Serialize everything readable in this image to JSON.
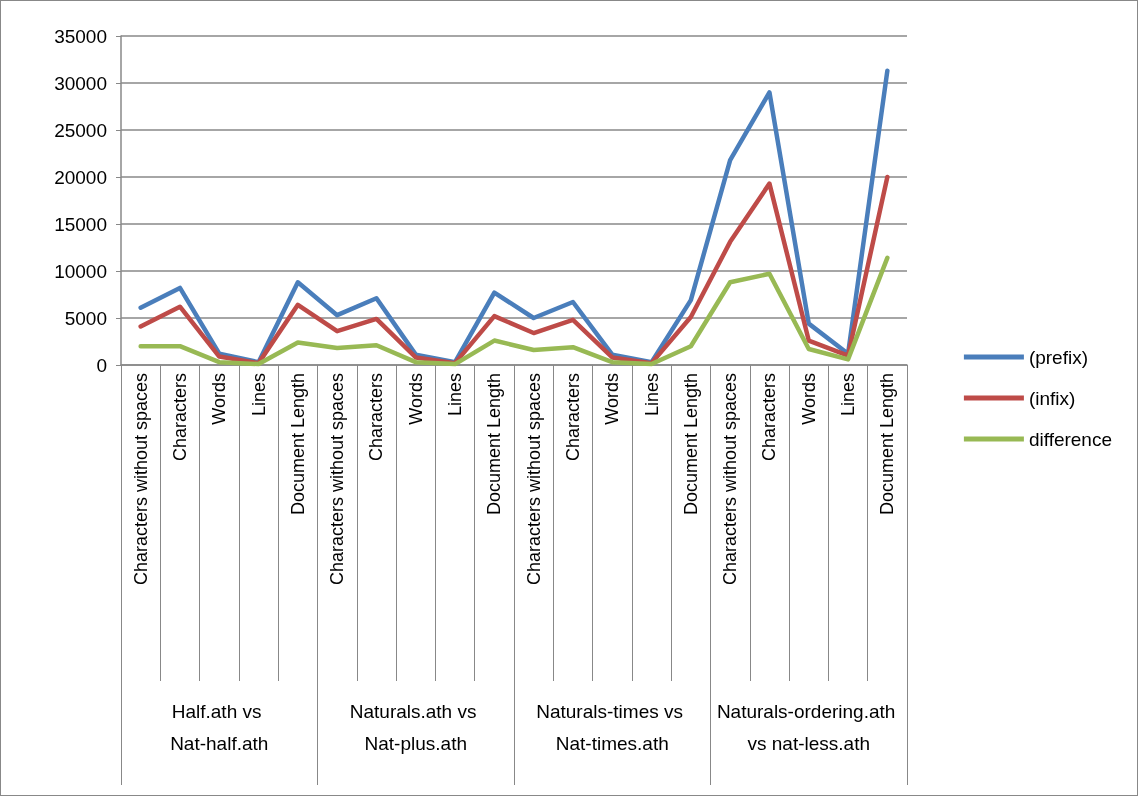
{
  "chart_data": {
    "type": "line",
    "categories": [
      "Characters without spaces",
      "Characters",
      "Words",
      "Lines",
      "Document Length",
      "Characters without spaces",
      "Characters",
      "Words",
      "Lines",
      "Document Length",
      "Characters without spaces",
      "Characters",
      "Words",
      "Lines",
      "Document Length",
      "Characters without spaces",
      "Characters",
      "Words",
      "Lines",
      "Document Length"
    ],
    "series": [
      {
        "name": "(prefix)",
        "color": "#4a7ebb",
        "values": [
          6100,
          8200,
          1200,
          300,
          8800,
          5300,
          7100,
          1100,
          300,
          7700,
          5000,
          6700,
          1100,
          300,
          6900,
          21800,
          29000,
          4400,
          1200,
          31300
        ]
      },
      {
        "name": "(infix)",
        "color": "#be4b48",
        "values": [
          4100,
          6200,
          900,
          200,
          6400,
          3600,
          4900,
          800,
          200,
          5200,
          3400,
          4800,
          800,
          200,
          5100,
          13100,
          19300,
          2600,
          1000,
          20000
        ]
      },
      {
        "name": "difference",
        "color": "#98b954",
        "values": [
          2000,
          2000,
          300,
          100,
          2400,
          1800,
          2100,
          300,
          100,
          2600,
          1600,
          1900,
          300,
          100,
          2000,
          8800,
          9700,
          1700,
          600,
          11400
        ]
      }
    ],
    "annotations": [
      "Half.ath vs Nat-half.ath",
      "Naturals.ath vs Nat-plus.ath",
      "Naturals-times vs Nat-times.ath",
      "Naturals-ordering.ath vs nat-less.ath"
    ],
    "ylim": [
      0,
      35000
    ],
    "yticks": [
      0,
      5000,
      10000,
      15000,
      20000,
      25000,
      30000,
      35000
    ],
    "grid": "y",
    "legend": "right",
    "marker": "none",
    "line_style": "solid"
  }
}
